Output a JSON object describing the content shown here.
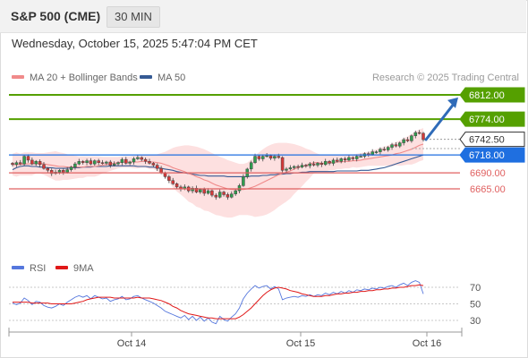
{
  "header": {
    "title": "S&P 500 (CME)",
    "timeframe": "30 MIN"
  },
  "datetime": "Wednesday, October 15, 2025 5:47:04 PM CET",
  "legend": {
    "ma20": "MA 20 + Bollinger Bands",
    "ma50": "MA 50",
    "rsi": "RSI",
    "ma9": "9MA"
  },
  "watermark": "Research © 2025 Trading Central",
  "colors": {
    "ma20": "#f08a8a",
    "ma50": "#355a94",
    "band": "#fde0e0",
    "resistance": "#55a000",
    "support": "#e06060",
    "pivot": "#1f6fe0",
    "last": "#333333",
    "arrow": "#2f6bb8",
    "rsi": "#5577dd",
    "rsi_ma": "#e01818"
  },
  "chart_data": [
    {
      "type": "line",
      "name": "price",
      "x_ticks": [
        "Oct 14",
        "Oct 15",
        "Oct 16"
      ],
      "ylim": [
        6620,
        6830
      ],
      "levels": [
        {
          "value": 6812.0,
          "label": "6812.00",
          "kind": "resistance"
        },
        {
          "value": 6774.0,
          "label": "6774.00",
          "kind": "resistance"
        },
        {
          "value": 6742.5,
          "label": "6742.50",
          "kind": "last"
        },
        {
          "value": 6718.0,
          "label": "6718.00",
          "kind": "pivot"
        },
        {
          "value": 6690.0,
          "label": "6690.00",
          "kind": "support"
        },
        {
          "value": 6665.0,
          "label": "6665.00",
          "kind": "support"
        }
      ],
      "close": [
        6703,
        6706,
        6704,
        6716,
        6710,
        6704,
        6708,
        6703,
        6697,
        6694,
        6689,
        6691,
        6694,
        6691,
        6695,
        6699,
        6704,
        6708,
        6706,
        6709,
        6704,
        6709,
        6706,
        6705,
        6707,
        6702,
        6704,
        6706,
        6711,
        6705,
        6707,
        6712,
        6714,
        6711,
        6708,
        6705,
        6702,
        6697,
        6690,
        6684,
        6678,
        6673,
        6668,
        6665,
        6668,
        6662,
        6666,
        6660,
        6664,
        6658,
        6662,
        6655,
        6652,
        6660,
        6656,
        6652,
        6657,
        6662,
        6670,
        6684,
        6696,
        6706,
        6716,
        6712,
        6716,
        6717,
        6713,
        6716,
        6714,
        6694,
        6696,
        6698,
        6700,
        6699,
        6702,
        6701,
        6704,
        6702,
        6705,
        6703,
        6708,
        6705,
        6710,
        6708,
        6712,
        6710,
        6714,
        6712,
        6716,
        6716,
        6720,
        6719,
        6723,
        6723,
        6727,
        6726,
        6730,
        6734,
        6732,
        6737,
        6742,
        6740,
        6748,
        6753,
        6752,
        6742
      ],
      "ma20": [
        6703,
        6703,
        6703,
        6704,
        6704,
        6704,
        6705,
        6705,
        6704,
        6703,
        6702,
        6701,
        6700,
        6700,
        6699,
        6699,
        6699,
        6699,
        6699,
        6700,
        6700,
        6700,
        6701,
        6702,
        6703,
        6704,
        6705,
        6706,
        6707,
        6707,
        6707,
        6707,
        6707,
        6708,
        6708,
        6707,
        6707,
        6706,
        6705,
        6703,
        6701,
        6698,
        6696,
        6694,
        6692,
        6689,
        6687,
        6684,
        6682,
        6679,
        6677,
        6674,
        6671,
        6669,
        6667,
        6665,
        6664,
        6664,
        6664,
        6664,
        6665,
        6667,
        6669,
        6672,
        6675,
        6678,
        6681,
        6684,
        6687,
        6689,
        6691,
        6693,
        6696,
        6698,
        6700,
        6702,
        6704,
        6706,
        6706,
        6705,
        6705,
        6706,
        6706,
        6707,
        6707,
        6708,
        6708,
        6709,
        6709,
        6710,
        6711,
        6712,
        6713,
        6714,
        6715,
        6716,
        6717,
        6718,
        6720,
        6721,
        6723,
        6725,
        6727,
        6730,
        6733,
        6735
      ],
      "bb_upper": [
        6720,
        6722,
        6720,
        6722,
        6722,
        6722,
        6721,
        6721,
        6721,
        6722,
        6723,
        6724,
        6722,
        6721,
        6719,
        6718,
        6717,
        6716,
        6716,
        6716,
        6716,
        6716,
        6716,
        6715,
        6715,
        6715,
        6715,
        6715,
        6716,
        6716,
        6716,
        6717,
        6717,
        6718,
        6718,
        6718,
        6718,
        6719,
        6721,
        6723,
        6726,
        6729,
        6731,
        6732,
        6733,
        6733,
        6732,
        6731,
        6729,
        6727,
        6724,
        6721,
        6718,
        6715,
        6713,
        6710,
        6708,
        6706,
        6704,
        6704,
        6706,
        6711,
        6717,
        6722,
        6727,
        6731,
        6734,
        6736,
        6737,
        6737,
        6737,
        6736,
        6735,
        6733,
        6731,
        6728,
        6726,
        6723,
        6720,
        6718,
        6718,
        6718,
        6718,
        6718,
        6718,
        6719,
        6719,
        6719,
        6720,
        6721,
        6722,
        6723,
        6725,
        6727,
        6729,
        6731,
        6733,
        6736,
        6738,
        6741,
        6744,
        6747,
        6751,
        6755,
        6758,
        6760
      ],
      "bb_lower": [
        6686,
        6684,
        6686,
        6686,
        6686,
        6686,
        6689,
        6689,
        6687,
        6684,
        6681,
        6678,
        6678,
        6679,
        6679,
        6680,
        6681,
        6682,
        6682,
        6684,
        6684,
        6684,
        6686,
        6689,
        6691,
        6693,
        6695,
        6697,
        6698,
        6698,
        6698,
        6697,
        6697,
        6698,
        6698,
        6696,
        6696,
        6693,
        6689,
        6683,
        6676,
        6667,
        6661,
        6656,
        6651,
        6645,
        6642,
        6637,
        6635,
        6631,
        6630,
        6627,
        6624,
        6623,
        6621,
        6620,
        6620,
        6622,
        6624,
        6624,
        6624,
        6623,
        6621,
        6622,
        6623,
        6625,
        6628,
        6632,
        6637,
        6641,
        6645,
        6650,
        6657,
        6663,
        6669,
        6676,
        6682,
        6689,
        6692,
        6692,
        6692,
        6694,
        6694,
        6696,
        6696,
        6697,
        6697,
        6699,
        6698,
        6699,
        6700,
        6701,
        6701,
        6701,
        6701,
        6701,
        6701,
        6700,
        6702,
        6701,
        6702,
        6703,
        6703,
        6705,
        6708,
        6710
      ],
      "ma50": [
        6695,
        6698,
        6700,
        6701,
        6701,
        6700,
        6700,
        6699,
        6699,
        6698,
        6698,
        6697,
        6697,
        6697,
        6697,
        6698,
        6698,
        6698,
        6699,
        6699,
        6699,
        6700,
        6700,
        6700,
        6700,
        6701,
        6701,
        6701,
        6701,
        6701,
        6701,
        6701,
        6700,
        6700,
        6700,
        6699,
        6699,
        6698,
        6697,
        6696,
        6695,
        6694,
        6692,
        6691,
        6690,
        6689,
        6688,
        6687,
        6686,
        6686,
        6685,
        6685,
        6685,
        6685,
        6685,
        6684,
        6684,
        6684,
        6684,
        6684,
        6684,
        6685,
        6685,
        6685,
        6686,
        6686,
        6687,
        6687,
        6688,
        6688,
        6689,
        6689,
        6690,
        6690,
        6691,
        6691,
        6692,
        6692,
        6692,
        6692,
        6692,
        6692,
        6692,
        6693,
        6693,
        6693,
        6693,
        6693,
        6693,
        6694,
        6694,
        6694,
        6695,
        6696,
        6697,
        6698,
        6700,
        6702,
        6704,
        6706,
        6708,
        6710,
        6712,
        6714,
        6716,
        6718
      ]
    },
    {
      "type": "line",
      "name": "rsi",
      "ylim": [
        20,
        80
      ],
      "y_ticks": [
        70,
        50,
        30
      ],
      "rsi": [
        51,
        49,
        51,
        57,
        54,
        49,
        53,
        52,
        48,
        46,
        45,
        47,
        50,
        48,
        52,
        55,
        58,
        60,
        58,
        60,
        56,
        60,
        58,
        56,
        57,
        53,
        55,
        56,
        59,
        55,
        56,
        59,
        60,
        57,
        55,
        53,
        51,
        48,
        45,
        41,
        39,
        37,
        35,
        33,
        36,
        31,
        35,
        30,
        34,
        29,
        33,
        28,
        26,
        35,
        31,
        29,
        34,
        38,
        45,
        56,
        63,
        68,
        72,
        69,
        71,
        72,
        68,
        71,
        68,
        55,
        57,
        58,
        59,
        58,
        60,
        59,
        61,
        59,
        61,
        60,
        63,
        61,
        64,
        62,
        65,
        63,
        66,
        64,
        67,
        66,
        68,
        67,
        69,
        68,
        70,
        69,
        71,
        72,
        70,
        73,
        75,
        72,
        76,
        78,
        76,
        62
      ],
      "ma9": [
        52,
        52,
        52,
        52,
        52,
        51,
        51,
        51,
        51,
        51,
        50,
        50,
        50,
        50,
        50,
        50,
        51,
        52,
        53,
        55,
        56,
        57,
        58,
        58,
        58,
        58,
        57,
        57,
        57,
        57,
        57,
        57,
        58,
        57,
        57,
        57,
        56,
        55,
        54,
        52,
        50,
        47,
        45,
        42,
        40,
        38,
        37,
        36,
        35,
        34,
        33,
        33,
        32,
        32,
        32,
        32,
        32,
        32,
        34,
        37,
        41,
        45,
        50,
        55,
        60,
        64,
        67,
        69,
        70,
        69,
        68,
        66,
        65,
        64,
        62,
        61,
        60,
        59,
        59,
        59,
        60,
        60,
        61,
        62,
        62,
        63,
        63,
        64,
        64,
        65,
        65,
        66,
        66,
        67,
        67,
        68,
        68,
        69,
        69,
        70,
        70,
        71,
        72,
        72,
        73,
        72
      ]
    }
  ]
}
